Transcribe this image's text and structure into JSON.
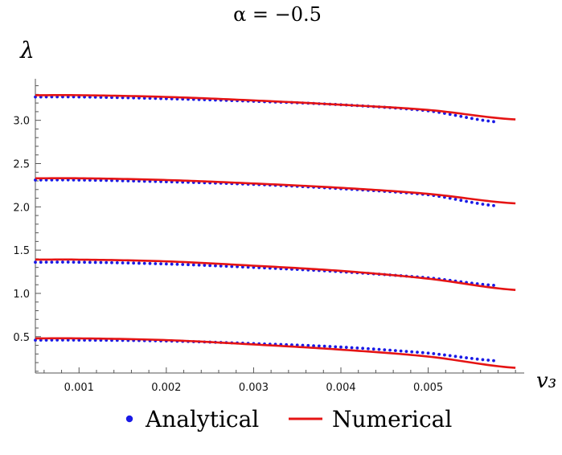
{
  "chart_data": {
    "type": "line",
    "title": "α = −0.5",
    "xlabel": "v₃",
    "ylabel": "λ",
    "xlim": [
      0.0005,
      0.0061
    ],
    "ylim": [
      0.08,
      3.48
    ],
    "grid": false,
    "legend_position": "bottom",
    "x_ticks": [
      0.001,
      0.002,
      0.003,
      0.004,
      0.005
    ],
    "x_tick_labels": [
      "0.001",
      "0.002",
      "0.003",
      "0.004",
      "0.005"
    ],
    "y_ticks": [
      0.5,
      1.0,
      1.5,
      2.0,
      2.5,
      3.0
    ],
    "y_tick_labels": [
      "0.5",
      "1.0",
      "1.5",
      "2.0",
      "2.5",
      "3.0"
    ],
    "series": [
      {
        "name": "Analytical",
        "style": "points",
        "color": "#1a1ae6",
        "curves": [
          {
            "x": [
              0.0005,
              0.001,
              0.002,
              0.003,
              0.004,
              0.005,
              0.0058
            ],
            "y": [
              0.46,
              0.46,
              0.45,
              0.42,
              0.38,
              0.31,
              0.22
            ]
          },
          {
            "x": [
              0.0005,
              0.001,
              0.002,
              0.003,
              0.004,
              0.005,
              0.0058
            ],
            "y": [
              1.36,
              1.36,
              1.34,
              1.3,
              1.25,
              1.18,
              1.09
            ]
          },
          {
            "x": [
              0.0005,
              0.001,
              0.002,
              0.003,
              0.004,
              0.005,
              0.0058
            ],
            "y": [
              2.31,
              2.31,
              2.29,
              2.26,
              2.21,
              2.14,
              2.01
            ]
          },
          {
            "x": [
              0.0005,
              0.001,
              0.002,
              0.003,
              0.004,
              0.005,
              0.0058
            ],
            "y": [
              3.27,
              3.27,
              3.25,
              3.22,
              3.18,
              3.11,
              2.98
            ]
          }
        ]
      },
      {
        "name": "Numerical",
        "style": "line",
        "color": "#e51414",
        "curves": [
          {
            "x": [
              0.0005,
              0.001,
              0.002,
              0.003,
              0.004,
              0.005,
              0.006
            ],
            "y": [
              0.48,
              0.48,
              0.46,
              0.41,
              0.35,
              0.27,
              0.14
            ]
          },
          {
            "x": [
              0.0005,
              0.001,
              0.002,
              0.003,
              0.004,
              0.005,
              0.006
            ],
            "y": [
              1.39,
              1.39,
              1.37,
              1.32,
              1.26,
              1.17,
              1.04
            ]
          },
          {
            "x": [
              0.0005,
              0.001,
              0.002,
              0.003,
              0.004,
              0.005,
              0.006
            ],
            "y": [
              2.33,
              2.33,
              2.31,
              2.27,
              2.22,
              2.15,
              2.04
            ]
          },
          {
            "x": [
              0.0005,
              0.001,
              0.002,
              0.003,
              0.004,
              0.005,
              0.006
            ],
            "y": [
              3.29,
              3.29,
              3.27,
              3.23,
              3.18,
              3.12,
              3.01
            ]
          }
        ]
      }
    ]
  }
}
